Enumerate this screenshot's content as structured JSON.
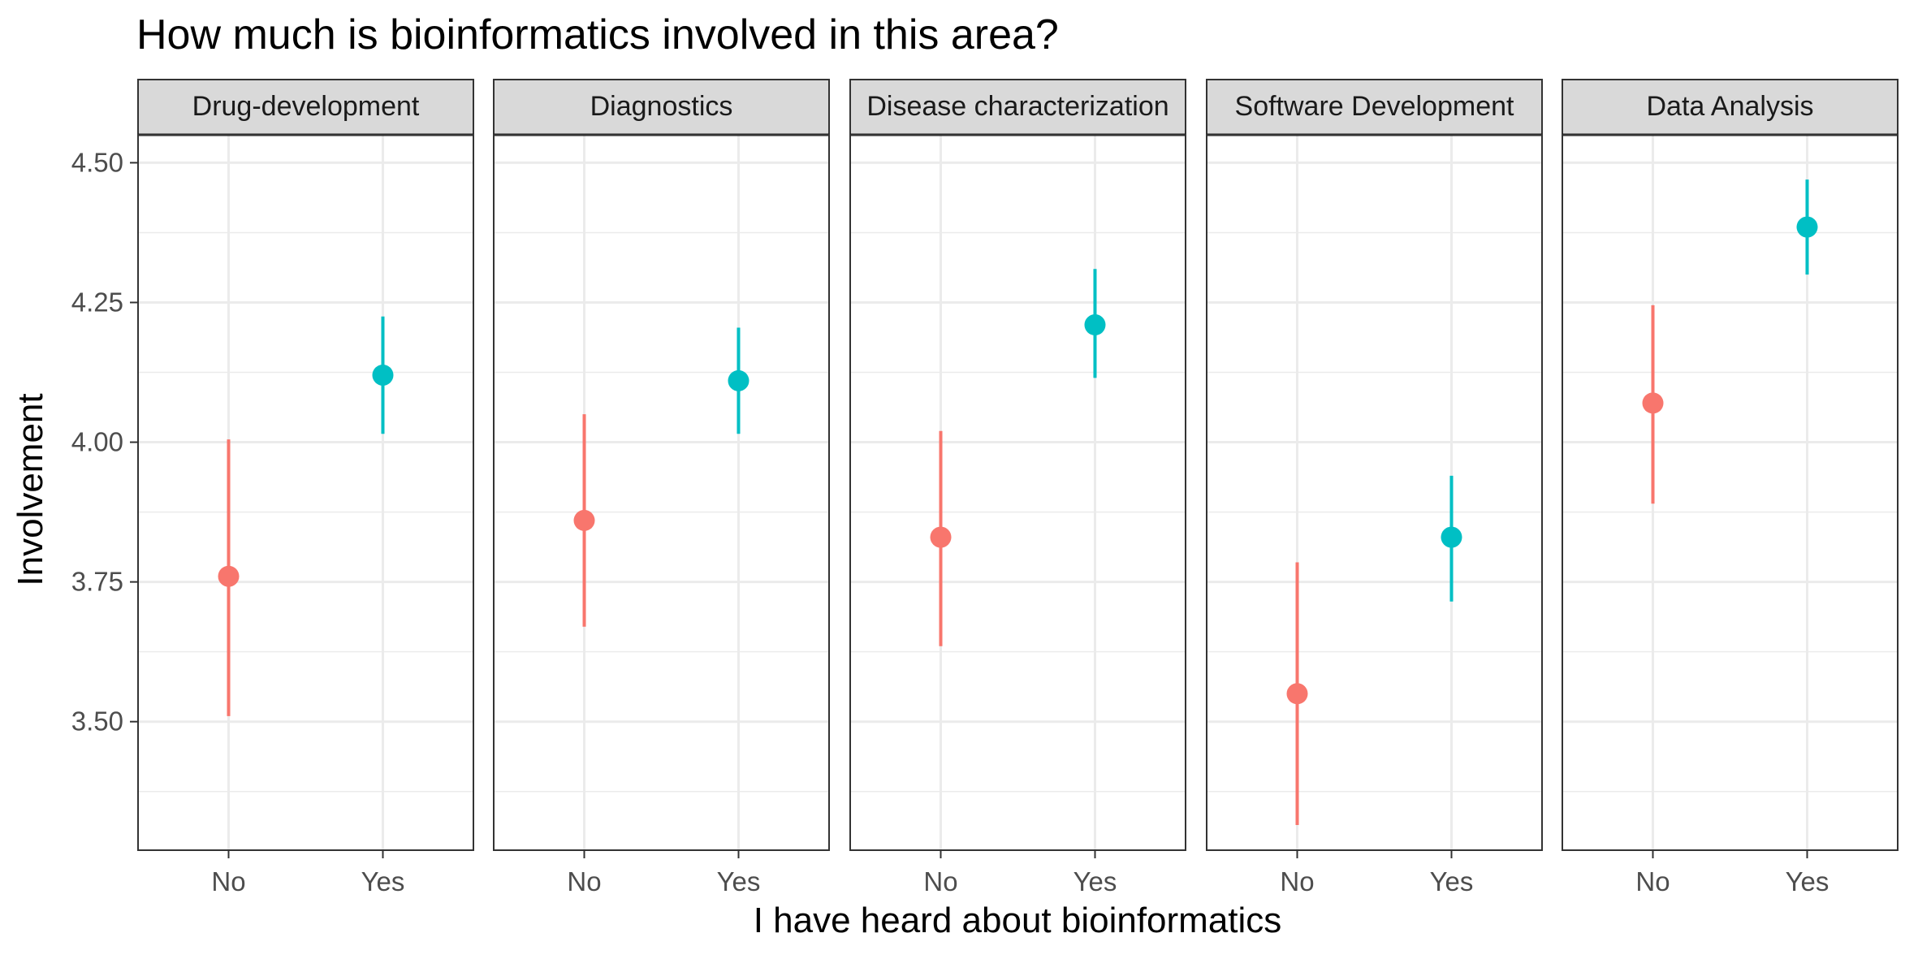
{
  "chart_data": {
    "type": "scatter",
    "subtype": "pointrange",
    "title": "How much is bioinformatics involved in this area?",
    "xlabel": "I have heard about bioinformatics",
    "ylabel": "Involvement",
    "categories": [
      "No",
      "Yes"
    ],
    "ylim": [
      3.27,
      4.55
    ],
    "yticks": [
      3.5,
      3.75,
      4.0,
      4.25,
      4.5
    ],
    "ytick_labels": [
      "3.50",
      "3.75",
      "4.00",
      "4.25",
      "4.50"
    ],
    "grid": true,
    "legend": "none",
    "colors": {
      "No": "#F8766D",
      "Yes": "#00BFC4"
    },
    "panels": [
      {
        "name": "Drug-development",
        "points": [
          {
            "x": "No",
            "y": 3.76,
            "ymin": 3.51,
            "ymax": 4.005
          },
          {
            "x": "Yes",
            "y": 4.12,
            "ymin": 4.015,
            "ymax": 4.225
          }
        ]
      },
      {
        "name": "Diagnostics",
        "points": [
          {
            "x": "No",
            "y": 3.86,
            "ymin": 3.67,
            "ymax": 4.05
          },
          {
            "x": "Yes",
            "y": 4.11,
            "ymin": 4.015,
            "ymax": 4.205
          }
        ]
      },
      {
        "name": "Disease characterization",
        "points": [
          {
            "x": "No",
            "y": 3.83,
            "ymin": 3.635,
            "ymax": 4.02
          },
          {
            "x": "Yes",
            "y": 4.21,
            "ymin": 4.115,
            "ymax": 4.31
          }
        ]
      },
      {
        "name": "Software Development",
        "points": [
          {
            "x": "No",
            "y": 3.55,
            "ymin": 3.315,
            "ymax": 3.785
          },
          {
            "x": "Yes",
            "y": 3.83,
            "ymin": 3.715,
            "ymax": 3.94
          }
        ]
      },
      {
        "name": "Data Analysis",
        "points": [
          {
            "x": "No",
            "y": 4.07,
            "ymin": 3.89,
            "ymax": 4.245
          },
          {
            "x": "Yes",
            "y": 4.385,
            "ymin": 4.3,
            "ymax": 4.47
          }
        ]
      }
    ]
  }
}
